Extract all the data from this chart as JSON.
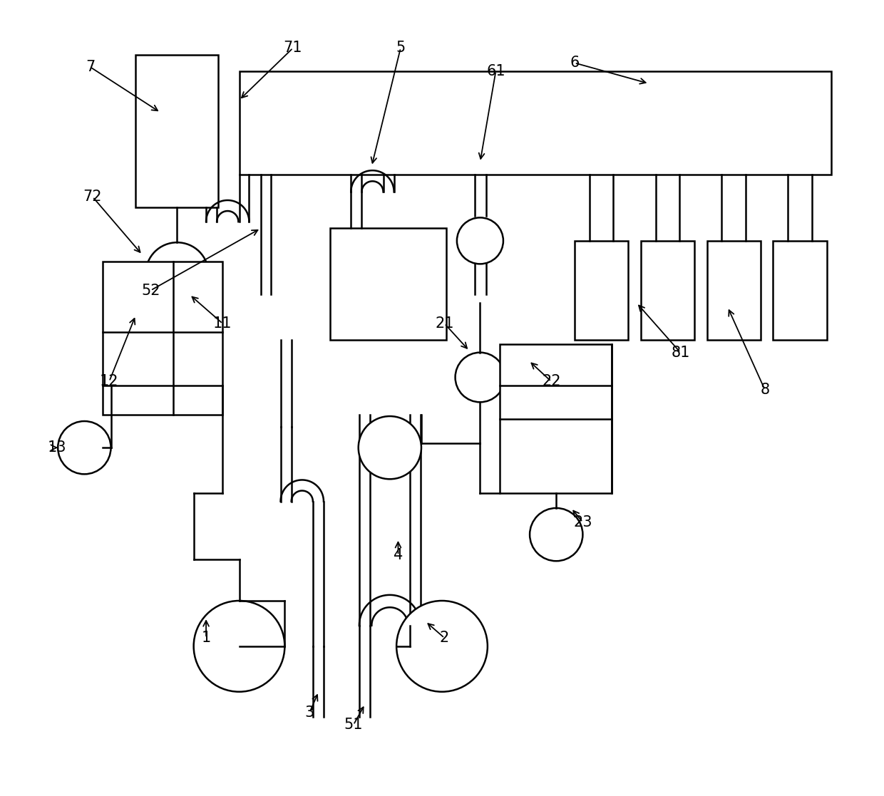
{
  "bg_color": "#ffffff",
  "lc": "#000000",
  "lw": 1.8,
  "fig_w": 12.4,
  "fig_h": 11.17,
  "dpi": 100
}
